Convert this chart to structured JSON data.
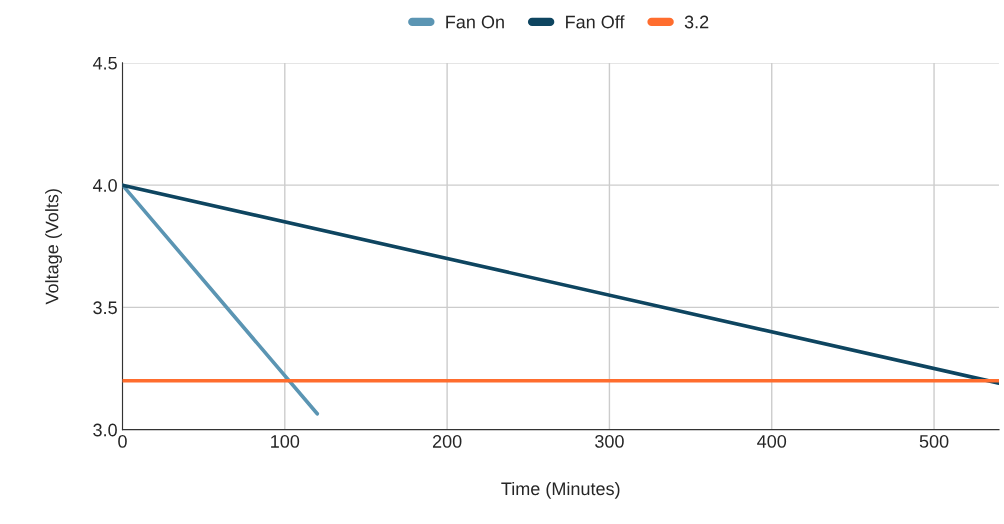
{
  "chart_data": {
    "type": "line",
    "xlabel": "Time (Minutes)",
    "ylabel": "Voltage (Volts)",
    "series": [
      {
        "name": "Fan On",
        "color": "#5b95b3",
        "x": [
          0,
          120
        ],
        "values": [
          4.0,
          3.065
        ]
      },
      {
        "name": "Fan Off",
        "color": "#0e4560",
        "x": [
          0,
          540
        ],
        "values": [
          4.0,
          3.19
        ]
      },
      {
        "name": "3.2",
        "color": "#ff6d2e",
        "x": [
          0,
          540
        ],
        "values": [
          3.2,
          3.2
        ]
      }
    ],
    "xlim": [
      0,
      540
    ],
    "xticks": [
      0,
      100,
      200,
      300,
      400,
      500
    ],
    "ylim": [
      3.0,
      4.5
    ],
    "yticks": [
      {
        "value": 3.0,
        "label": "3.0"
      },
      {
        "value": 3.5,
        "label": "3.5"
      },
      {
        "value": 4.0,
        "label": "4.0"
      },
      {
        "value": 4.5,
        "label": "4.5"
      }
    ],
    "grid": true,
    "legend": "top",
    "marker": "none",
    "line_style": "solid"
  }
}
